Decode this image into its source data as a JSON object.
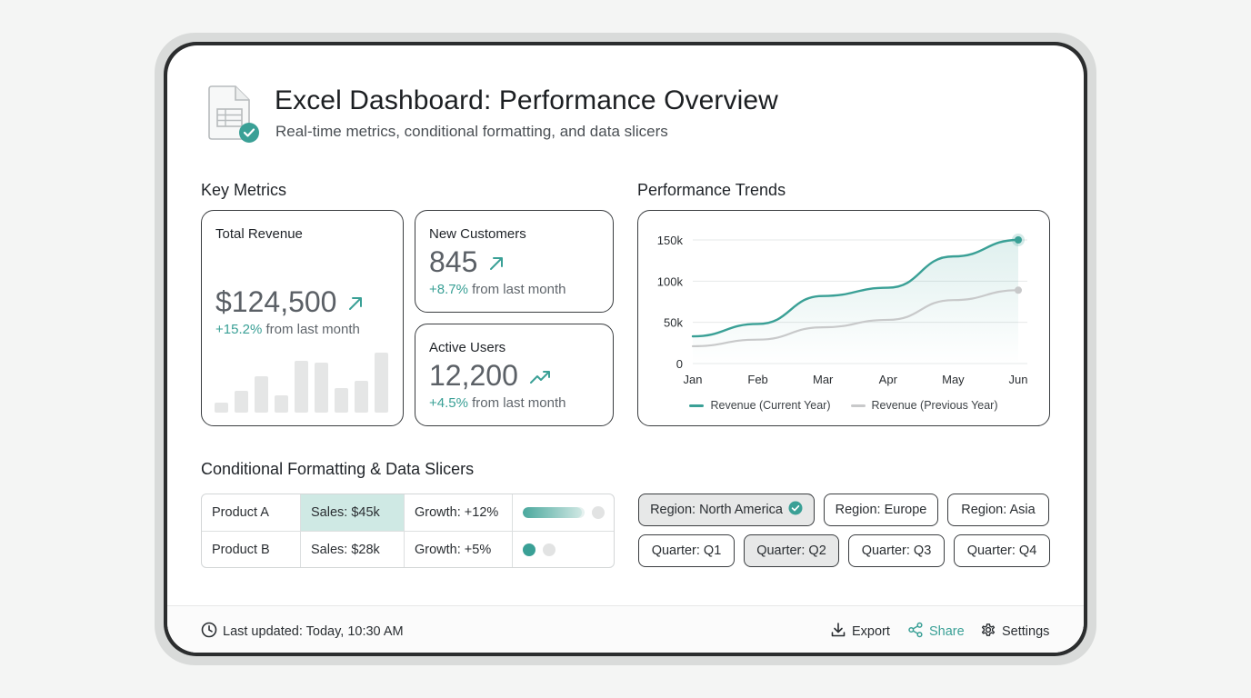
{
  "header": {
    "title": "Excel Dashboard: Performance Overview",
    "subtitle": "Real-time metrics, conditional formatting, and data slicers",
    "icon": "spreadsheet-check-icon"
  },
  "colors": {
    "accent": "#3aa096",
    "secondary": "#c8c9ca",
    "highlight": "#cfe9e4"
  },
  "key_metrics": {
    "heading": "Key Metrics",
    "total_revenue": {
      "label": "Total Revenue",
      "value": "$124,500",
      "change_pct": "+15.2%",
      "change_text": "from last month",
      "sparkline_values": [
        10,
        21,
        35,
        17,
        50,
        48,
        24,
        31,
        58
      ]
    },
    "new_customers": {
      "label": "New Customers",
      "value": "845",
      "change_pct": "+8.7%",
      "change_text": "from last month"
    },
    "active_users": {
      "label": "Active Users",
      "value": "12,200",
      "change_pct": "+4.5%",
      "change_text": "from last month"
    }
  },
  "performance_trends": {
    "heading": "Performance Trends"
  },
  "chart_data": {
    "type": "line",
    "x": [
      "Jan",
      "Feb",
      "Mar",
      "Apr",
      "May",
      "Jun"
    ],
    "series": [
      {
        "name": "Revenue (Current Year)",
        "values": [
          33000,
          48000,
          82000,
          92000,
          130000,
          150000
        ],
        "color": "#3aa096"
      },
      {
        "name": "Revenue (Previous Year)",
        "values": [
          21000,
          29000,
          44000,
          53000,
          77000,
          89000
        ],
        "color": "#c8c9ca"
      }
    ],
    "yticks": [
      "0",
      "50k",
      "100k",
      "150k"
    ],
    "ylim": [
      0,
      150000
    ],
    "grid": true,
    "legend": "bottom"
  },
  "conditional": {
    "heading": "Conditional Formatting & Data Slicers",
    "rows": [
      {
        "product": "Product A",
        "sales": "Sales: $45k",
        "growth": "Growth: +12%",
        "progress": 0.95,
        "highlighted": true
      },
      {
        "product": "Product B",
        "sales": "Sales: $28k",
        "growth": "Growth: +5%",
        "progress": 0.1,
        "highlighted": false
      }
    ]
  },
  "slicers": {
    "regions": [
      {
        "label": "Region: North America",
        "selected": true
      },
      {
        "label": "Region: Europe",
        "selected": false
      },
      {
        "label": "Region: Asia",
        "selected": false
      }
    ],
    "quarters": [
      {
        "label": "Quarter: Q1",
        "selected": false
      },
      {
        "label": "Quarter: Q2",
        "selected": true
      },
      {
        "label": "Quarter: Q3",
        "selected": false
      },
      {
        "label": "Quarter: Q4",
        "selected": false
      }
    ]
  },
  "footer": {
    "last_updated": "Last updated: Today, 10:30 AM",
    "export_label": "Export",
    "share_label": "Share",
    "settings_label": "Settings"
  }
}
